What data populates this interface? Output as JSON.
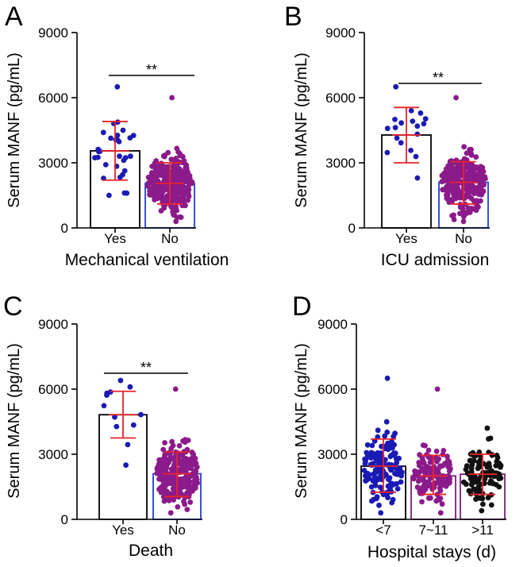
{
  "figure": {
    "colors": {
      "yes_points": "#1a1ab4",
      "no_points": "#8b1a8b",
      "dark_points": "#111111",
      "error_bars": "#e8232a",
      "bar_outline_white": "#000000",
      "bar_outline_blue": "#1f3fd6",
      "bar_outline_purple": "#7a1f7a"
    }
  },
  "chart_data": [
    {
      "panel": "A",
      "type": "bar",
      "categories": [
        "Yes",
        "No"
      ],
      "values": [
        3550,
        2050
      ],
      "sd": [
        [
          2200,
          4900
        ],
        [
          1100,
          3000
        ]
      ],
      "point_ranges": [
        [
          1500,
          6500
        ],
        [
          300,
          6000
        ]
      ],
      "point_counts": [
        30,
        260
      ],
      "xlabel": "Mechanical ventilation",
      "ylabel": "Serum MANF (pg/mL)",
      "ylim": [
        0,
        9000
      ],
      "yticks": [
        "0",
        "3000",
        "6000",
        "9000"
      ],
      "significance": "**"
    },
    {
      "panel": "B",
      "type": "bar",
      "categories": [
        "Yes",
        "No"
      ],
      "values": [
        4280,
        2100
      ],
      "sd": [
        [
          3000,
          5550
        ],
        [
          1100,
          3050
        ]
      ],
      "point_ranges": [
        [
          2300,
          6500
        ],
        [
          300,
          6000
        ]
      ],
      "point_counts": [
        18,
        270
      ],
      "xlabel": "ICU admission",
      "ylabel": "Serum MANF (pg/mL)",
      "ylim": [
        0,
        9000
      ],
      "yticks": [
        "0",
        "3000",
        "6000",
        "9000"
      ],
      "significance": "**"
    },
    {
      "panel": "C",
      "type": "bar",
      "categories": [
        "Yes",
        "No"
      ],
      "values": [
        4820,
        2100
      ],
      "sd": [
        [
          3750,
          5900
        ],
        [
          1050,
          3100
        ]
      ],
      "point_ranges": [
        [
          2500,
          6400
        ],
        [
          300,
          6000
        ]
      ],
      "point_counts": [
        12,
        275
      ],
      "xlabel": "Death",
      "ylabel": "Serum MANF (pg/mL)",
      "ylim": [
        0,
        9000
      ],
      "yticks": [
        "0",
        "3000",
        "6000",
        "9000"
      ],
      "significance": "**"
    },
    {
      "panel": "D",
      "type": "bar",
      "categories": [
        "<7",
        "7~11",
        ">11"
      ],
      "values": [
        2450,
        2000,
        2080
      ],
      "sd": [
        [
          1250,
          3700
        ],
        [
          1150,
          2950
        ],
        [
          1150,
          3000
        ]
      ],
      "point_ranges": [
        [
          300,
          6500
        ],
        [
          300,
          6000
        ],
        [
          400,
          4200
        ]
      ],
      "point_counts": [
        140,
        120,
        100
      ],
      "xlabel": "Hospital stays (d)",
      "ylabel": "Serum MANF (pg/mL)",
      "ylim": [
        0,
        9000
      ],
      "yticks": [
        "0",
        "3000",
        "6000",
        "9000"
      ],
      "significance": ""
    }
  ]
}
